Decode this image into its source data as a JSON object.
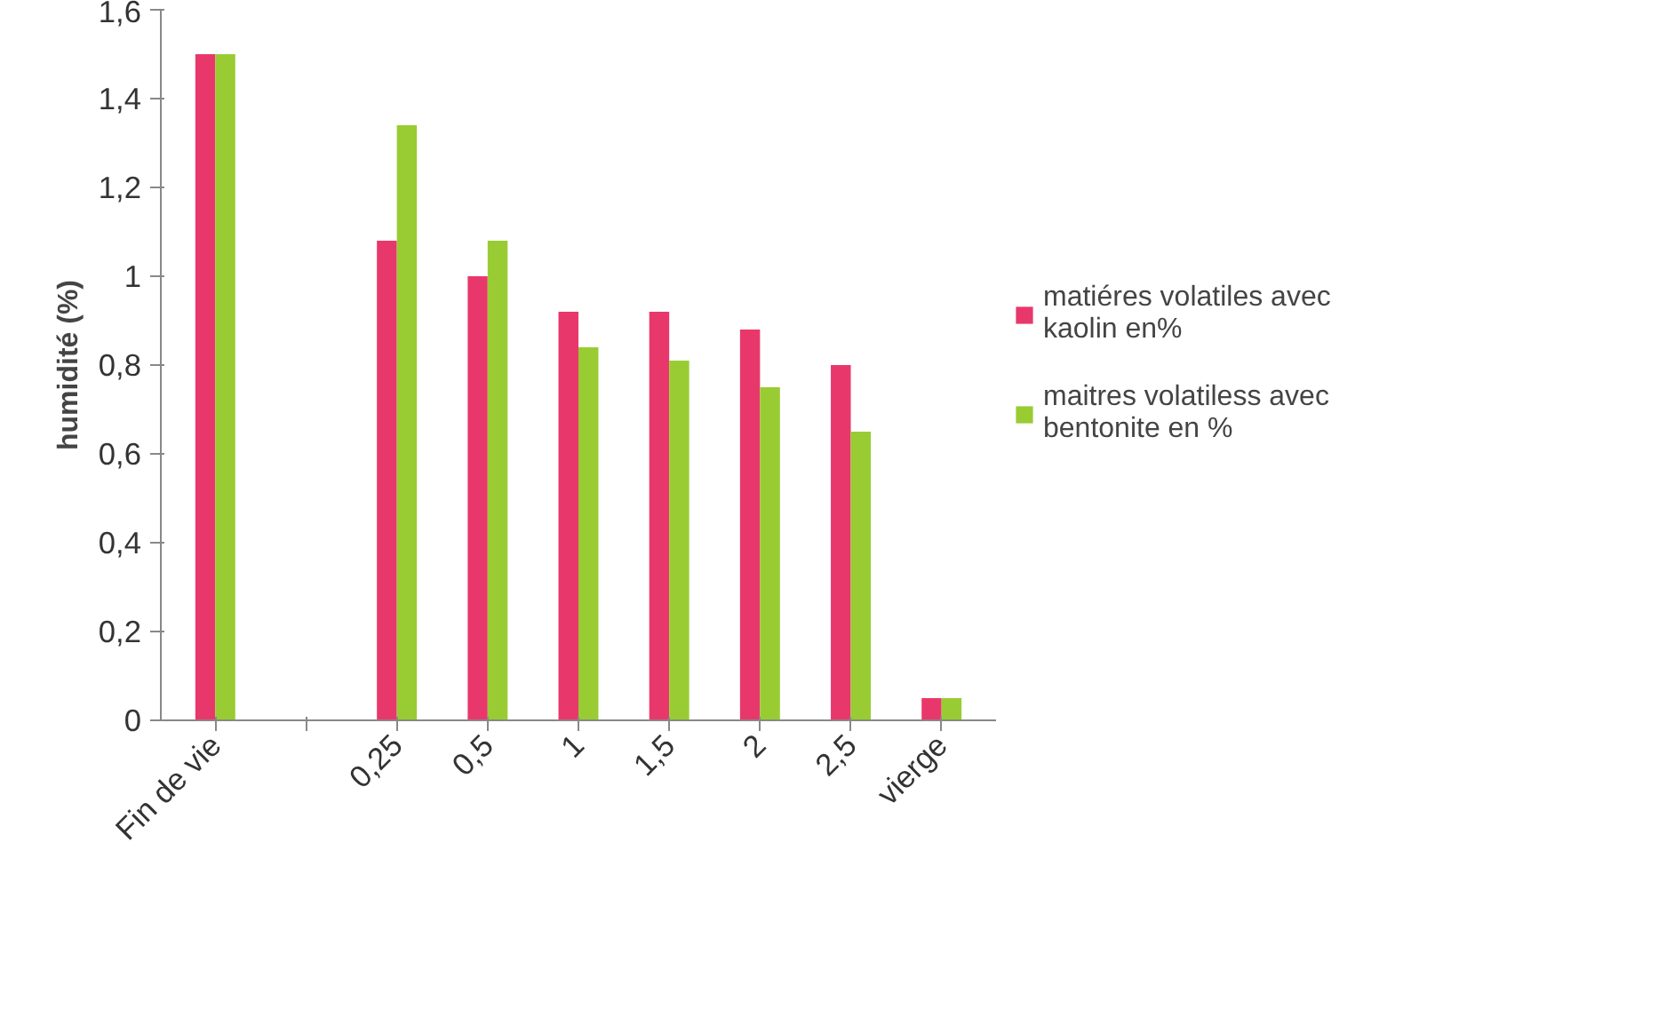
{
  "chart_data": {
    "type": "bar",
    "ylabel": "humidité (%)",
    "categories": [
      "Fin de vie",
      null,
      "0,25",
      "0,5",
      "1",
      "1,5",
      "2",
      "2,5",
      "vierge"
    ],
    "series": [
      {
        "name": "matiéres volatiles avec kaolin en%",
        "color": "#e8386b",
        "values": [
          1.5,
          null,
          1.08,
          1.0,
          0.92,
          0.92,
          0.88,
          0.8,
          0.05
        ]
      },
      {
        "name": "maitres volatiless avec bentonite en %",
        "color": "#99cc33",
        "values": [
          1.5,
          null,
          1.34,
          1.08,
          0.84,
          0.81,
          0.75,
          0.65,
          0.05
        ]
      }
    ],
    "ylim": [
      0,
      1.6
    ],
    "yticks": [
      0,
      {
        "value": 0.2,
        "label": "0,2"
      },
      {
        "value": 0.4,
        "label": "0,4"
      },
      {
        "value": 0.6,
        "label": "0,6"
      },
      {
        "value": 0.8,
        "label": "0,8"
      },
      1,
      {
        "value": 1.2,
        "label": "1,2"
      },
      {
        "value": 1.4,
        "label": "1,4"
      },
      {
        "value": 1.6,
        "label": "1,6"
      }
    ],
    "grid": false,
    "legend": "right"
  }
}
